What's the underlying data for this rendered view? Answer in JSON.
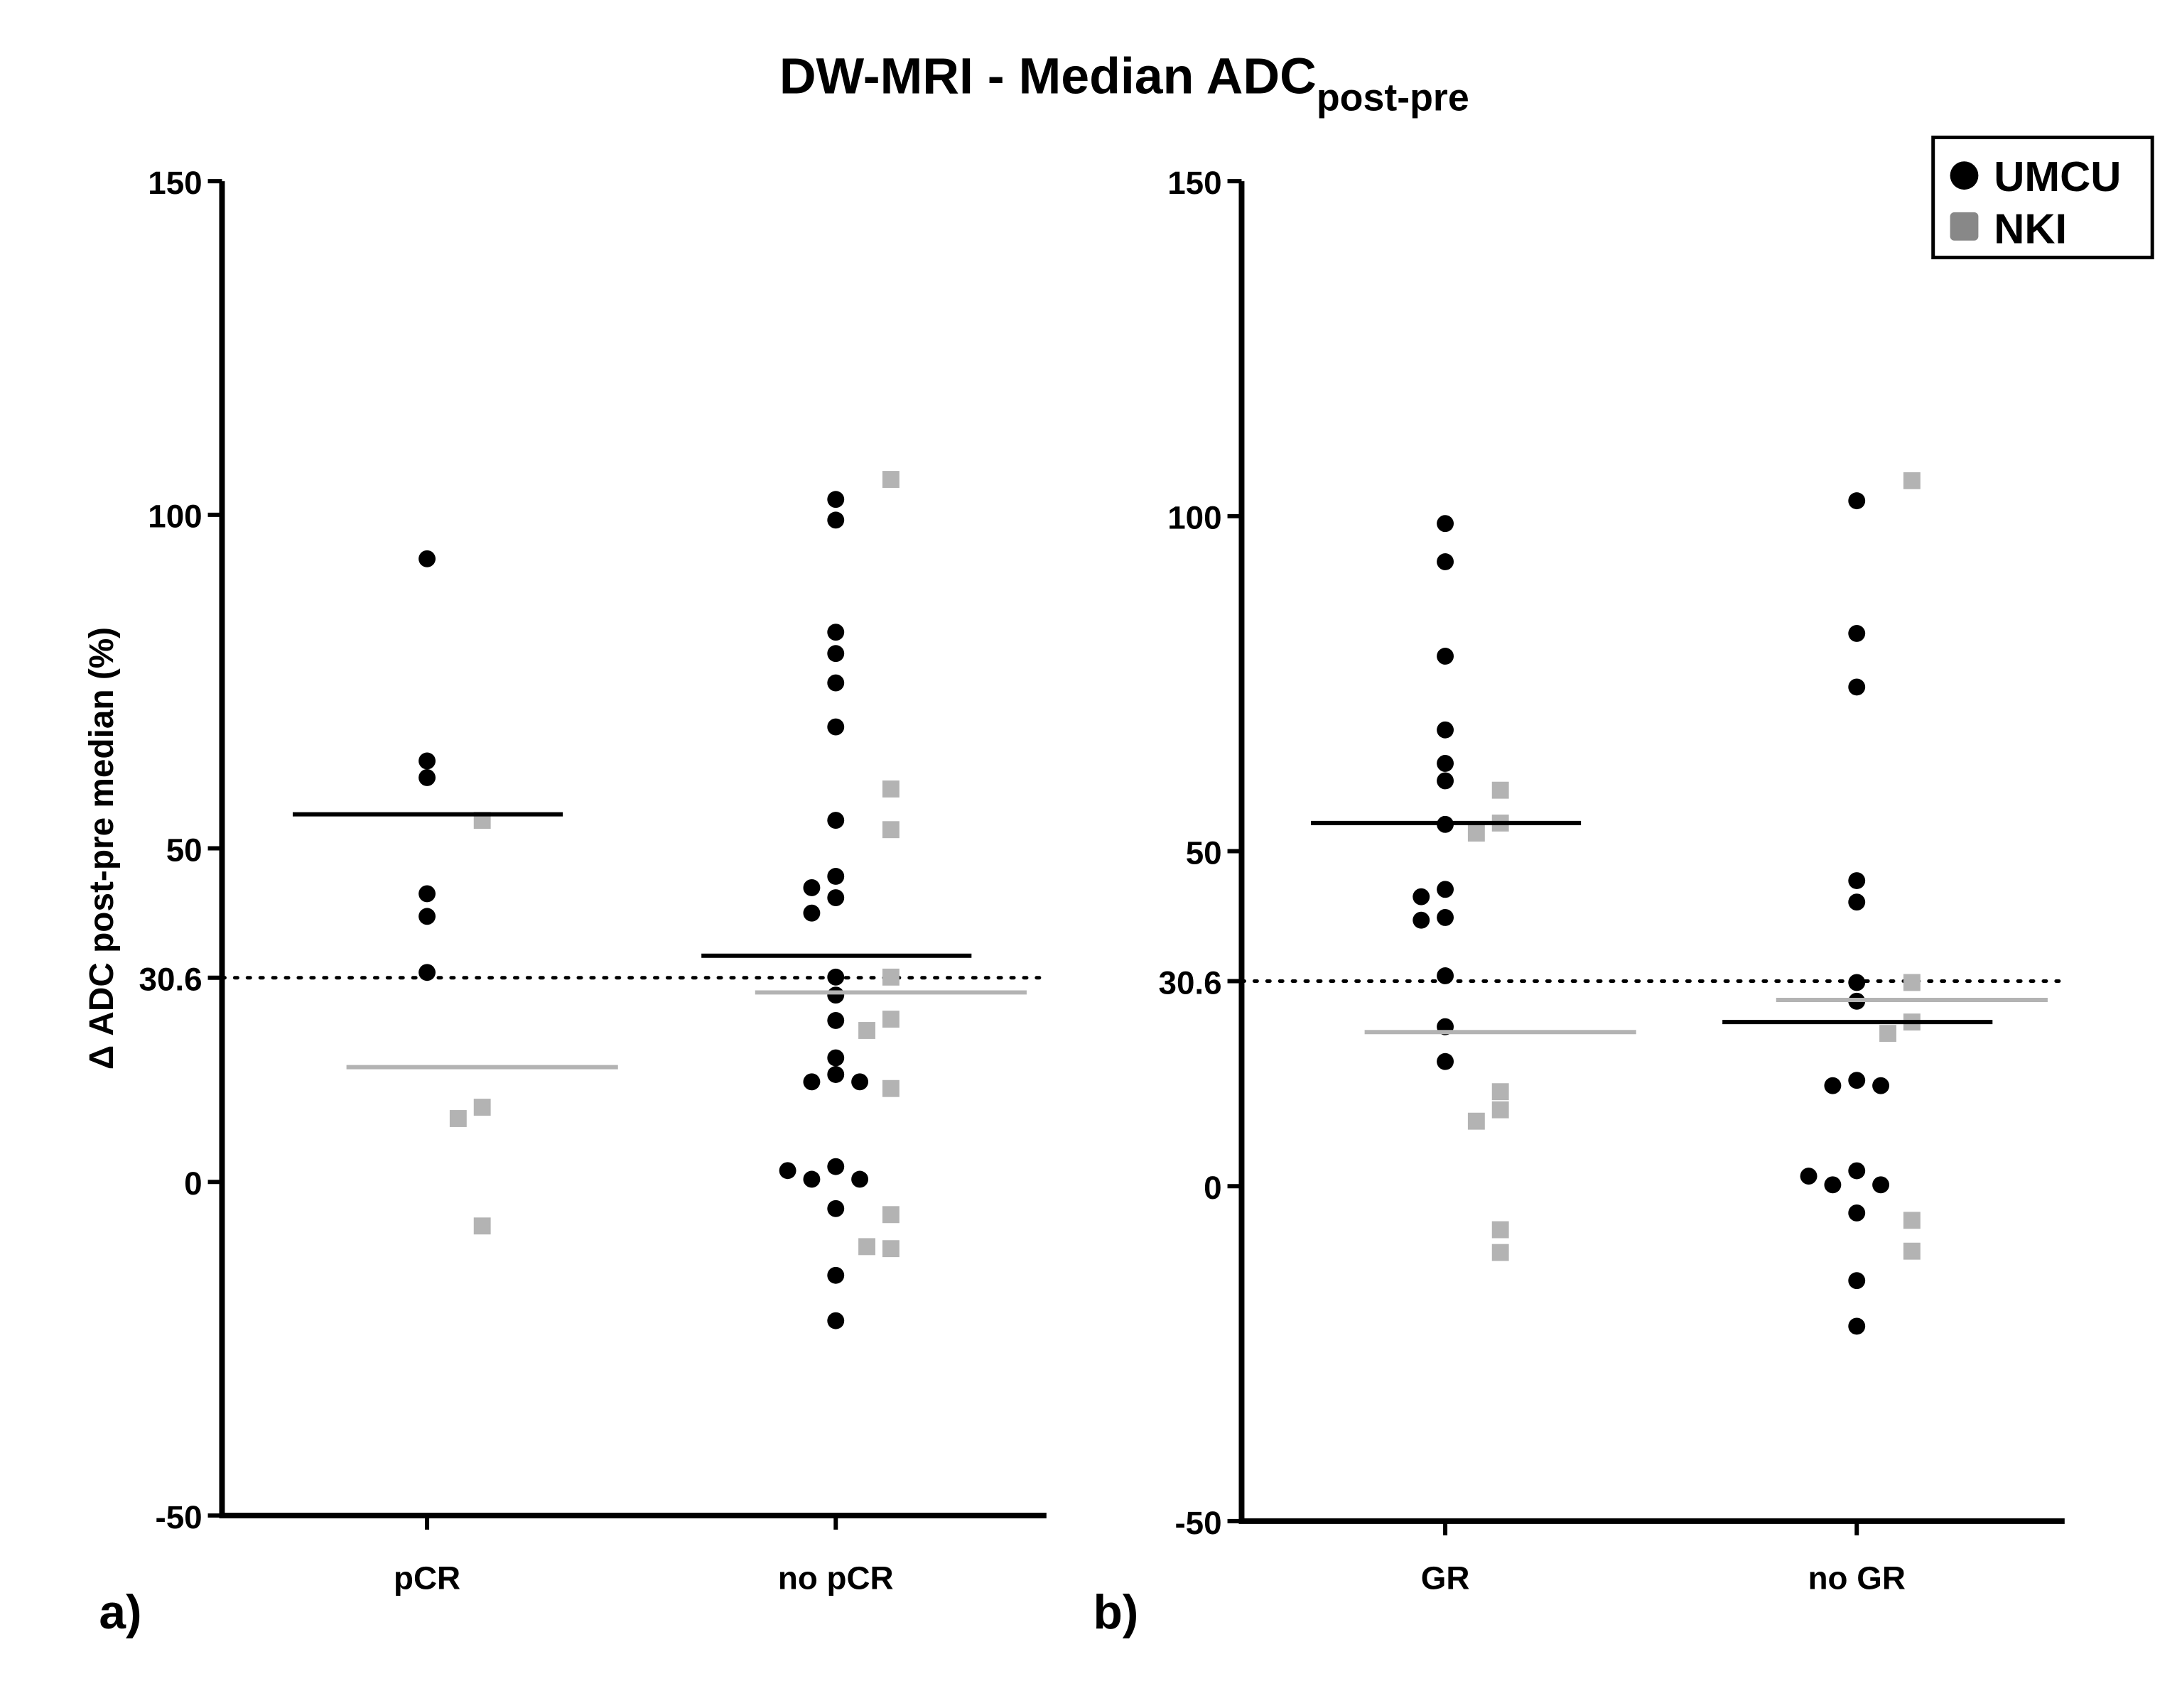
{
  "chart_data": {
    "type": "scatter",
    "title": "DW-MRI - Median ADC",
    "title_subscript": "post-pre",
    "ylabel": "Δ ADC post-pre median (%)",
    "ylim": [
      -50,
      150
    ],
    "yticks": [
      "150",
      "100",
      "50",
      "30.6",
      "0",
      "-50"
    ],
    "ytick_values": [
      150,
      100,
      50,
      30.6,
      0,
      -50
    ],
    "threshold": 30.6,
    "legend": {
      "placement": "top-right",
      "entries": [
        {
          "label": "UMCU",
          "marker": "circle",
          "color": "#000000"
        },
        {
          "label": "NKI",
          "marker": "square",
          "color": "#888888"
        }
      ]
    },
    "colors": {
      "UMCU": "#000000",
      "NKI": "#b3b3b3"
    },
    "panels": [
      {
        "label": "a)",
        "categories": [
          "pCR",
          "no pCR"
        ],
        "groups": [
          {
            "UMCU": [
              93.4,
              63.1,
              60.6,
              43.2,
              39.8,
              31.4
            ],
            "NKI": [
              54.2,
              11.2,
              9.5,
              -6.6
            ],
            "median_UMCU": 55.1,
            "median_NKI": 17.2
          },
          {
            "UMCU": [
              102.3,
              99.2,
              82.4,
              79.2,
              74.8,
              68.2,
              54.2,
              45.8,
              44.1,
              42.6,
              40.3,
              30.7,
              28.0,
              24.2,
              18.6,
              16.1,
              15.0,
              15.0,
              2.3,
              0.4,
              0.4,
              1.7,
              -4.0,
              -14.0,
              -20.8
            ],
            "NKI": [
              105.3,
              58.9,
              52.8,
              30.7,
              24.4,
              22.7,
              14.0,
              -4.9,
              -10.0,
              -9.7
            ],
            "median_UMCU": 33.9,
            "median_NKI": 28.4
          }
        ]
      },
      {
        "label": "b)",
        "categories": [
          "GR",
          "no GR"
        ],
        "groups": [
          {
            "UMCU": [
              98.9,
              93.2,
              79.1,
              68.1,
              63.1,
              60.5,
              54.0,
              44.3,
              43.2,
              40.1,
              39.7,
              31.4,
              23.8,
              18.6
            ],
            "NKI": [
              59.1,
              54.2,
              52.7,
              14.1,
              11.4,
              9.7,
              -6.5,
              -9.9
            ],
            "median_UMCU": 54.2,
            "median_NKI": 23.0
          },
          {
            "UMCU": [
              102.3,
              82.5,
              74.5,
              45.6,
              42.4,
              30.4,
              27.6,
              15.8,
              15.0,
              15.0,
              2.3,
              0.2,
              0.2,
              1.5,
              -4.0,
              -14.1,
              -20.9
            ],
            "NKI": [
              105.3,
              30.4,
              24.5,
              22.8,
              -5.1,
              -9.7
            ],
            "median_UMCU": 24.5,
            "median_NKI": 27.8
          }
        ]
      }
    ]
  }
}
